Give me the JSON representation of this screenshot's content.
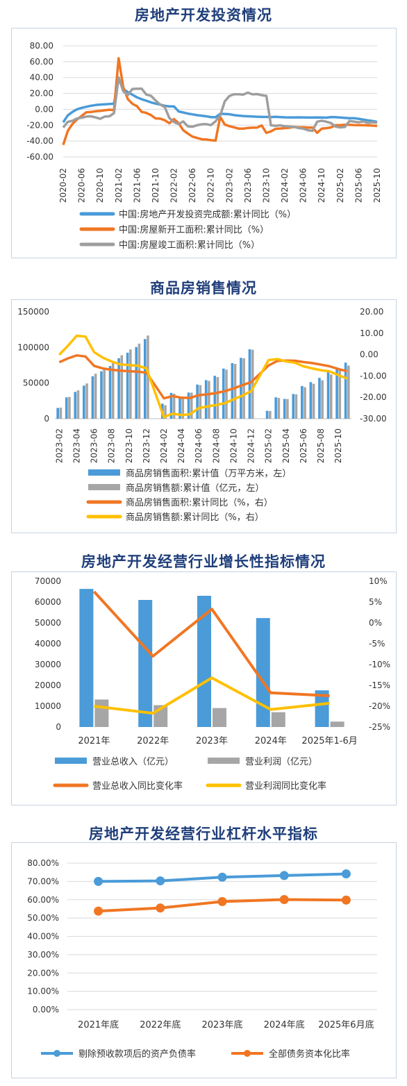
{
  "chart_data": [
    {
      "type": "line",
      "title": "房地产开发投资情况",
      "x_ticks": [
        "2020-02",
        "2020-06",
        "2020-10",
        "2021-02",
        "2021-06",
        "2021-10",
        "2022-02",
        "2022-06",
        "2022-10",
        "2023-02",
        "2023-06",
        "2023-10",
        "2024-02",
        "2024-06",
        "2024-10",
        "2025-02",
        "2025-06",
        "2025-10"
      ],
      "ylim": [
        -60,
        80
      ],
      "y_ticks": [
        "80.00",
        "60.00",
        "40.00",
        "20.00",
        "0.00",
        "-20.00",
        "-40.00",
        "-60.00"
      ],
      "grid": true,
      "legend_position": "bottom",
      "series": [
        {
          "name": "中国:房地产开发投资完成额:累计同比（%）",
          "color": "#4a9bd8",
          "x": [
            0,
            1,
            2,
            3,
            4,
            5,
            6,
            7,
            8,
            9,
            10,
            11,
            12,
            13,
            14,
            15,
            16,
            17,
            18,
            19,
            20,
            21,
            22,
            23,
            24,
            25,
            26,
            27,
            28,
            29,
            30,
            31,
            32,
            33,
            34,
            35,
            36,
            37,
            38,
            39,
            40,
            41,
            42,
            43,
            44,
            45,
            46,
            47,
            48,
            49,
            50,
            51,
            52,
            53,
            54,
            55,
            56,
            57,
            58,
            59,
            60,
            61,
            62,
            63,
            64,
            65,
            66,
            67,
            68
          ],
          "values": [
            -16.3,
            -7.7,
            -3.3,
            0.0,
            1.9,
            3.2,
            4.5,
            5.4,
            6.0,
            6.3,
            6.8,
            7.0,
            38.3,
            25.6,
            21.6,
            18.3,
            15.0,
            12.7,
            10.9,
            8.8,
            7.2,
            6.0,
            4.4,
            3.7,
            3.7,
            -2.7,
            -4.0,
            -5.4,
            -6.4,
            -7.4,
            -8.0,
            -8.8,
            -9.8,
            -10.0,
            -5.7,
            -5.8,
            -6.2,
            -7.2,
            -7.9,
            -8.5,
            -8.8,
            -9.1,
            -9.3,
            -9.6,
            -9.6,
            -9.8,
            -9.5,
            -9.8,
            -10.1,
            -10.2,
            -10.2,
            -10.1,
            -10.2,
            -10.4,
            -10.3,
            -10.2,
            -10.3,
            -10.6,
            -9.8,
            -9.9,
            -10.3,
            -10.7,
            -11.2,
            -11.2,
            -12.0,
            -12.9,
            -13.9,
            -14.7,
            -15.9
          ]
        },
        {
          "name": "中国:房屋新开工面积:累计同比（%）",
          "color": "#f07623",
          "x": [
            0,
            1,
            2,
            3,
            4,
            5,
            6,
            7,
            8,
            9,
            10,
            11,
            12,
            13,
            14,
            15,
            16,
            17,
            18,
            19,
            20,
            21,
            22,
            23,
            24,
            25,
            26,
            27,
            28,
            29,
            30,
            31,
            32,
            33,
            34,
            35,
            36,
            37,
            38,
            39,
            40,
            41,
            42,
            43,
            44,
            45,
            46,
            47,
            48,
            49,
            50,
            51,
            52,
            53,
            54,
            55,
            56,
            57,
            58,
            59,
            60,
            61,
            62,
            63,
            64,
            65,
            66,
            67,
            68
          ],
          "values": [
            -44.9,
            -27.2,
            -18.4,
            -12.8,
            -8.3,
            -3.7,
            -3.4,
            -2.5,
            -2.0,
            -1.3,
            -0.5,
            -1.0,
            64.3,
            28.2,
            12.8,
            6.9,
            3.8,
            -3.2,
            -4.5,
            -7.2,
            -11.4,
            -11.8,
            -13.8,
            -17.6,
            -12.2,
            -17.5,
            -26.3,
            -30.6,
            -34.4,
            -36.1,
            -37.8,
            -38.0,
            -38.9,
            -39.4,
            -9.4,
            -19.2,
            -21.2,
            -22.6,
            -24.3,
            -24.4,
            -23.4,
            -23.2,
            -23.0,
            -20.4,
            -29.7,
            -27.8,
            -24.6,
            -24.2,
            -23.7,
            -23.2,
            -22.2,
            -22.7,
            -22.6,
            -23.0,
            -23.0,
            -29.6,
            -24.4,
            -23.8,
            -22.8,
            -20.0,
            -19.9,
            -19.4,
            -19.5,
            -19.8,
            -19.9,
            -20.0,
            -20.3,
            -20.5,
            -21.0
          ]
        },
        {
          "name": "中国:房屋竣工面积:累计同比（%）",
          "color": "#9e9e9e",
          "x": [
            0,
            1,
            2,
            3,
            4,
            5,
            6,
            7,
            8,
            9,
            10,
            11,
            12,
            13,
            14,
            15,
            16,
            17,
            18,
            19,
            20,
            21,
            22,
            23,
            24,
            25,
            26,
            27,
            28,
            29,
            30,
            31,
            32,
            33,
            34,
            35,
            36,
            37,
            38,
            39,
            40,
            41,
            42,
            43,
            44,
            45,
            46,
            47,
            48,
            49,
            50,
            51,
            52,
            53,
            54,
            55,
            56,
            57,
            58,
            59,
            60,
            61,
            62,
            63,
            64,
            65,
            66,
            67,
            68
          ],
          "values": [
            -22.9,
            -15.8,
            -14.5,
            -11.5,
            -10.6,
            -9.2,
            -8.8,
            -10.2,
            -12.0,
            -9.2,
            -8.8,
            -4.9,
            40.4,
            22.9,
            17.9,
            25.7,
            25.9,
            26.0,
            18.6,
            17.1,
            11.2,
            6.0,
            2.8,
            -11.0,
            -16.1,
            -18.5,
            -15.3,
            -21.5,
            -21.9,
            -20.0,
            -18.9,
            -18.7,
            -19.9,
            -15.0,
            -8.0,
            10.0,
            16.8,
            19.0,
            19.0,
            18.6,
            21.0,
            18.8,
            19.2,
            17.8,
            17.0,
            -20.2,
            -20.7,
            -20.2,
            -21.3,
            -21.8,
            -22.2,
            -23.6,
            -24.4,
            -26.3,
            -27.2,
            -15.6,
            -14.3,
            -15.6,
            -17.3,
            -21.8,
            -22.8,
            -22.3,
            -14.8,
            -15.5,
            -16.4,
            -15.3,
            -17.3,
            -16.3,
            -16.9
          ]
        }
      ]
    },
    {
      "type": "bar+line",
      "title": "商品房销售情况",
      "categories": [
        "2023-02",
        "2023-03",
        "2023-04",
        "2023-05",
        "2023-06",
        "2023-07",
        "2023-08",
        "2023-09",
        "2023-10",
        "2023-11",
        "2023-12",
        "2024-01",
        "2024-02",
        "2024-03",
        "2024-04",
        "2024-05",
        "2024-06",
        "2024-07",
        "2024-08",
        "2024-09",
        "2024-10",
        "2024-11",
        "2024-12",
        "2025-01",
        "2025-02",
        "2025-03",
        "2025-04",
        "2025-05",
        "2025-06",
        "2025-07",
        "2025-08",
        "2025-09",
        "2025-10",
        "2025-11"
      ],
      "x_ticks": [
        "2023-02",
        "2023-04",
        "2023-06",
        "2023-08",
        "2023-10",
        "2023-12",
        "2024-02",
        "2024-04",
        "2024-06",
        "2024-08",
        "2024-10",
        "2024-12",
        "2025-02",
        "2025-04",
        "2025-06",
        "2025-08",
        "2025-10"
      ],
      "ylim_left": [
        0,
        150000
      ],
      "y_ticks_left": [
        "150000",
        "100000",
        "50000",
        "0"
      ],
      "ylim_right": [
        -30,
        20
      ],
      "y_ticks_right": [
        "20.00",
        "10.00",
        "0.00",
        "-10.00",
        "-20.00",
        "-30.00"
      ],
      "legend_position": "bottom",
      "series": [
        {
          "name": "商品房销售面积:累计值（万平方米，左）",
          "type": "bar",
          "axis": "left",
          "color": "#4a9bd8",
          "values": [
            15133,
            29946,
            37636,
            46440,
            59515,
            66563,
            73949,
            84806,
            92579,
            100509,
            111735,
            null,
            21185,
            36232,
            29252,
            36642,
            47916,
            54193,
            60203,
            70284,
            77930,
            85386,
            97385,
            null,
            11108,
            30002,
            27766,
            34700,
            45851,
            51281,
            57301,
            65835,
            71982,
            78700
          ]
        },
        {
          "name": "商品房销售额:累计值（亿元，左）",
          "type": "bar",
          "axis": "left",
          "color": "#a6a6a6",
          "values": [
            15545,
            30545,
            39750,
            49446,
            63092,
            69983,
            78158,
            89070,
            97161,
            105318,
            116622,
            null,
            19027,
            35055,
            28067,
            36575,
            47133,
            53040,
            58402,
            68880,
            76855,
            84746,
            96750,
            null,
            10737,
            29136,
            27605,
            34190,
            44241,
            48992,
            53936,
            61940,
            67660,
            74539
          ]
        },
        {
          "name": "商品房销售面积:累计同比（%，右）",
          "type": "line",
          "axis": "right",
          "color": "#f07623",
          "values": [
            -3.6,
            -1.8,
            -0.4,
            -0.9,
            -5.3,
            -6.5,
            -7.1,
            -7.5,
            -7.8,
            -8.0,
            -8.5,
            null,
            -20.5,
            -19.4,
            -20.2,
            -20.3,
            -19.0,
            -18.6,
            -18.0,
            -17.1,
            -15.8,
            -14.3,
            -12.9,
            null,
            -5.1,
            -3.0,
            -2.8,
            -2.9,
            -3.5,
            -4.0,
            -4.7,
            -5.5,
            -6.8,
            -7.8
          ]
        },
        {
          "name": "商品房销售额:累计同比（%，右）",
          "type": "line",
          "axis": "right",
          "color": "#ffc000",
          "values": [
            -0.1,
            4.1,
            8.8,
            8.4,
            1.1,
            -1.5,
            -3.2,
            -4.6,
            -4.9,
            -5.2,
            -6.5,
            null,
            -29.3,
            -27.6,
            -28.3,
            -27.9,
            -25.0,
            -24.3,
            -23.6,
            -22.7,
            -20.9,
            -19.2,
            -17.1,
            null,
            -2.6,
            -2.1,
            -3.2,
            -3.8,
            -5.5,
            -6.5,
            -7.3,
            -7.9,
            -9.6,
            -11.2
          ]
        }
      ]
    },
    {
      "type": "bar+line",
      "title": "房地产开发经营行业增长性指标情况",
      "categories": [
        "2021年",
        "2022年",
        "2023年",
        "2024年",
        "2025年1-6月"
      ],
      "ylim_left": [
        0,
        70000
      ],
      "y_ticks_left": [
        "70000",
        "60000",
        "50000",
        "40000",
        "30000",
        "20000",
        "10000",
        "0"
      ],
      "ylim_right": [
        -25,
        10
      ],
      "y_ticks_right": [
        "10%",
        "5%",
        "0%",
        "-5%",
        "-10%",
        "-15%",
        "-20%",
        "-25%"
      ],
      "legend_position": "bottom",
      "series": [
        {
          "name": "营业总收入（亿元）",
          "type": "bar",
          "axis": "left",
          "color": "#4a9bd8",
          "values": [
            66300,
            61000,
            63000,
            52300,
            17600
          ]
        },
        {
          "name": "营业利润（亿元）",
          "type": "bar",
          "axis": "left",
          "color": "#a6a6a6",
          "values": [
            13200,
            10500,
            9100,
            7100,
            2600
          ]
        },
        {
          "name": "营业总收入同比变化率",
          "type": "line",
          "axis": "right",
          "color": "#f07623",
          "values": [
            7.5,
            -8.0,
            3.3,
            -16.8,
            -17.5
          ]
        },
        {
          "name": "营业利润同比变化率",
          "type": "line",
          "axis": "right",
          "color": "#ffc000",
          "values": [
            -20.0,
            -21.7,
            -13.2,
            -20.8,
            -19.3
          ]
        }
      ]
    },
    {
      "type": "line",
      "title": "房地产开发经营行业杠杆水平指标",
      "categories": [
        "2021年底",
        "2022年底",
        "2023年底",
        "2024年底",
        "2025年6月底"
      ],
      "ylim": [
        0,
        80
      ],
      "y_ticks": [
        "80.00%",
        "70.00%",
        "60.00%",
        "50.00%",
        "40.00%",
        "30.00%",
        "20.00%",
        "10.00%",
        "0.00%"
      ],
      "legend_position": "bottom",
      "series": [
        {
          "name": "剔除预收款项后的资产负债率",
          "color": "#4a9bd8",
          "values": [
            70.0,
            70.3,
            72.3,
            73.2,
            74.1
          ]
        },
        {
          "name": "全部债务资本化比率",
          "color": "#f07623",
          "values": [
            53.8,
            55.5,
            59.0,
            60.1,
            59.8
          ]
        }
      ]
    }
  ]
}
